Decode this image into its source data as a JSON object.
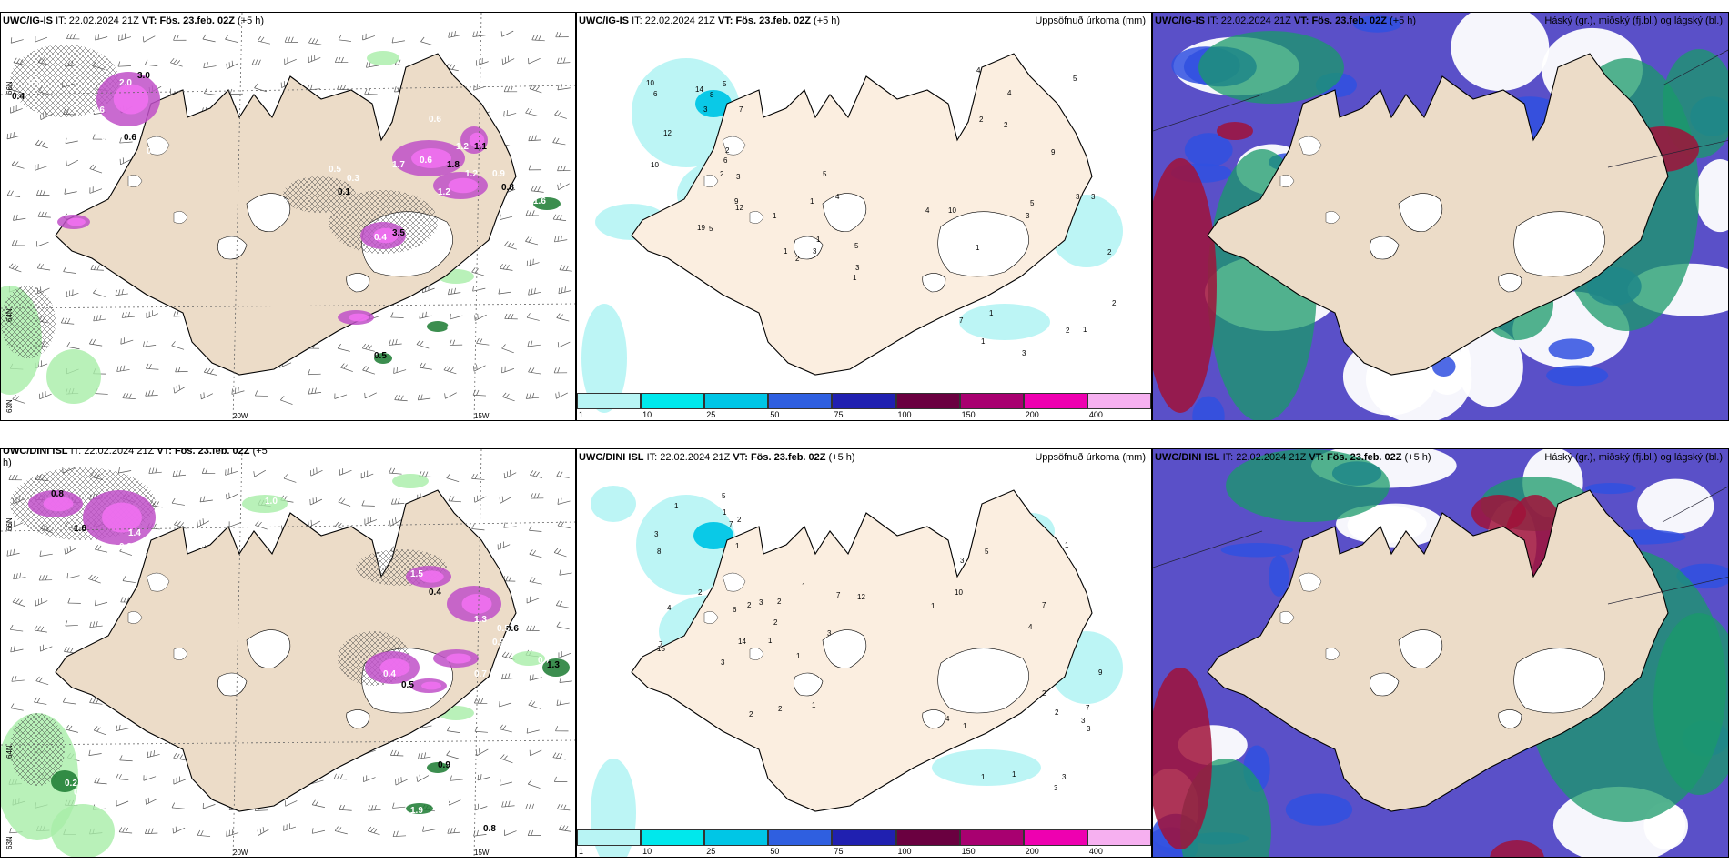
{
  "panels": {
    "p1": {
      "model": "UWC/IG-IS",
      "it_label": "IT:",
      "it": "22.02.2024 21Z",
      "vt_label": "VT:",
      "vt": "Fös. 23.feb. 02Z",
      "lead": "(+5 h)",
      "right": ""
    },
    "p2": {
      "model": "UWC/IG-IS",
      "it_label": "IT:",
      "it": "22.02.2024 21Z",
      "vt_label": "VT:",
      "vt": "Fös. 23.feb. 02Z",
      "lead": "(+5 h)",
      "right": "Uppsöfnuð úrkoma (mm)"
    },
    "p3": {
      "model": "UWC/IG-IS",
      "it_label": "IT:",
      "it": "22.02.2024 21Z",
      "vt_label": "VT:",
      "vt": "Fös. 23.feb. 02Z",
      "lead": "(+5 h)",
      "right": "Háský (gr.), miðský (fj.bl.) og lágský (bl.)"
    },
    "p4": {
      "model": "UWC/DINI ISL",
      "it_label": "IT:",
      "it": "22.02.2024 21Z",
      "vt_label": "VT:",
      "vt": "Fös. 23.feb. 02Z",
      "lead": "(+5",
      "lead2": "h)",
      "right": ""
    },
    "p5": {
      "model": "UWC/DINI ISL",
      "it_label": "IT:",
      "it": "22.02.2024 21Z",
      "vt_label": "VT:",
      "vt": "Fös. 23.feb. 02Z",
      "lead": "(+5 h)",
      "right": "Uppsöfnuð úrkoma (mm)"
    },
    "p6": {
      "model": "UWC/DINI ISL",
      "it_label": "IT:",
      "it": "22.02.2024 21Z",
      "vt_label": "VT:",
      "vt": "Fös. 23.feb. 02Z",
      "lead": "(+5 h)",
      "right": "Háský (gr.), miðský (fj.bl.) og lágský (bl.)"
    }
  },
  "grid_labels": {
    "lon_20w": "20W",
    "lon_15w": "15W",
    "lat_66n": "66N",
    "lat_64n": "64N",
    "lat_63n": "63N"
  },
  "colorbar": {
    "ticks": [
      "1",
      "10",
      "25",
      "50",
      "75",
      "100",
      "150",
      "200",
      "400"
    ],
    "colors": [
      "#b8f4f4",
      "#00e8ec",
      "#00c6e6",
      "#2f5fe0",
      "#2020b0",
      "#6a0040",
      "#a80070",
      "#ee00b0",
      "#f6b0f0"
    ]
  },
  "precip_labels_top": [
    "3",
    "12",
    "10",
    "7",
    "19",
    "14",
    "5",
    "5",
    "12",
    "10",
    "9",
    "8",
    "6",
    "6",
    "3",
    "5",
    "5",
    "3",
    "2",
    "1",
    "2",
    "1",
    "1",
    "1",
    "4",
    "3",
    "2",
    "1",
    "5",
    "4",
    "7",
    "10",
    "5",
    "3",
    "1",
    "2",
    "4",
    "2",
    "2",
    "1",
    "3",
    "4",
    "3",
    "1",
    "9",
    "3",
    "2",
    "2",
    "1"
  ],
  "precip_labels_bottom": [
    "1",
    "1",
    "3",
    "3",
    "2",
    "15",
    "14",
    "2",
    "1",
    "7",
    "7",
    "5",
    "4",
    "8",
    "2",
    "1",
    "3",
    "3",
    "6",
    "2",
    "1",
    "2",
    "1",
    "1",
    "2",
    "12",
    "7",
    "2",
    "2",
    "1",
    "3",
    "4",
    "3",
    "7",
    "4",
    "1",
    "3",
    "3",
    "1",
    "1",
    "7",
    "9",
    "5",
    "10",
    "2",
    "3",
    "1"
  ],
  "snow_labels_top": [
    "0.4",
    "0.3",
    "2.0",
    "3.0",
    "1.6",
    "0.5",
    "0.6",
    "0.3",
    "0.6",
    "1.8",
    "1.2",
    "0.4",
    "3.5",
    "0.5",
    "0.3",
    "0.1",
    "1.7",
    "0.6",
    "1.1",
    "0.9",
    "1.2",
    "0.8",
    "1.2",
    "1.6",
    "0.5",
    "1.0",
    "0.8"
  ],
  "snow_labels_bottom": [
    "0.8",
    "1.4",
    "1.0",
    "1.6",
    "0.8",
    "1.5",
    "0.4",
    "1.3",
    "0.4",
    "0.5",
    "0.7",
    "0.9",
    "0.6",
    "0.7",
    "0.5",
    "1.3",
    "0.2",
    "0.6",
    "0.9",
    "2.2",
    "1.9",
    "0.8"
  ]
}
